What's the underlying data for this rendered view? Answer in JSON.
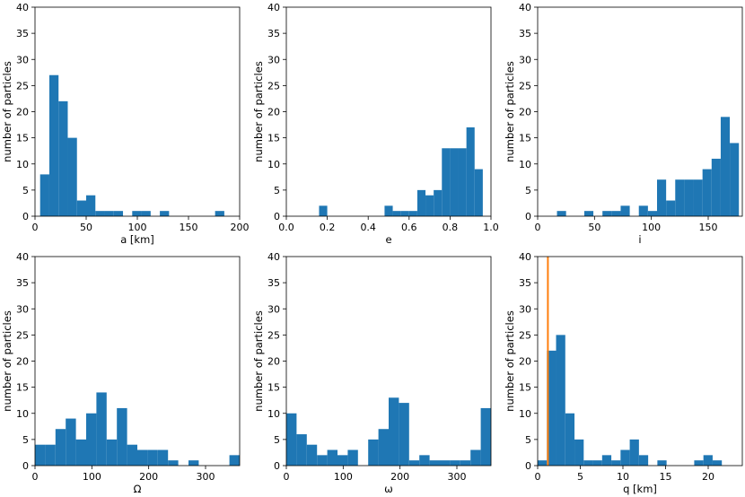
{
  "bar_color": "#1f77b4",
  "marker_color": "#ff7f0e",
  "chart_data": [
    {
      "type": "bar",
      "xlabel": "a [km]",
      "ylabel": "number of particles",
      "xlim": [
        0,
        200
      ],
      "ylim": [
        0,
        40
      ],
      "xticks": [
        0,
        50,
        100,
        150,
        200
      ],
      "yticks": [
        0,
        5,
        10,
        15,
        20,
        25,
        30,
        35,
        40
      ],
      "bins": [
        {
          "x0": 5,
          "x1": 14,
          "value": 8
        },
        {
          "x0": 14,
          "x1": 23,
          "value": 27
        },
        {
          "x0": 23,
          "x1": 32,
          "value": 22
        },
        {
          "x0": 32,
          "x1": 41,
          "value": 15
        },
        {
          "x0": 41,
          "x1": 50,
          "value": 3
        },
        {
          "x0": 50,
          "x1": 59,
          "value": 4
        },
        {
          "x0": 59,
          "x1": 68,
          "value": 1
        },
        {
          "x0": 68,
          "x1": 77,
          "value": 1
        },
        {
          "x0": 77,
          "x1": 86,
          "value": 1
        },
        {
          "x0": 95,
          "x1": 104,
          "value": 1
        },
        {
          "x0": 104,
          "x1": 113,
          "value": 1
        },
        {
          "x0": 122,
          "x1": 131,
          "value": 1
        },
        {
          "x0": 176,
          "x1": 185,
          "value": 1
        }
      ]
    },
    {
      "type": "bar",
      "xlabel": "e",
      "ylabel": "number of particles",
      "xlim": [
        0.0,
        1.0
      ],
      "ylim": [
        0,
        40
      ],
      "xticks": [
        0.0,
        0.2,
        0.4,
        0.6,
        0.8,
        1.0
      ],
      "xtick_labels": [
        "0.0",
        "0.2",
        "0.4",
        "0.6",
        "0.8",
        "1.0"
      ],
      "yticks": [
        0,
        5,
        10,
        15,
        20,
        25,
        30,
        35,
        40
      ],
      "bins": [
        {
          "x0": 0.16,
          "x1": 0.2,
          "value": 2
        },
        {
          "x0": 0.48,
          "x1": 0.52,
          "value": 2
        },
        {
          "x0": 0.52,
          "x1": 0.56,
          "value": 1
        },
        {
          "x0": 0.56,
          "x1": 0.6,
          "value": 1
        },
        {
          "x0": 0.6,
          "x1": 0.64,
          "value": 1
        },
        {
          "x0": 0.64,
          "x1": 0.68,
          "value": 5
        },
        {
          "x0": 0.68,
          "x1": 0.72,
          "value": 4
        },
        {
          "x0": 0.72,
          "x1": 0.76,
          "value": 5
        },
        {
          "x0": 0.76,
          "x1": 0.8,
          "value": 13
        },
        {
          "x0": 0.8,
          "x1": 0.84,
          "value": 13
        },
        {
          "x0": 0.84,
          "x1": 0.88,
          "value": 13
        },
        {
          "x0": 0.88,
          "x1": 0.92,
          "value": 17
        },
        {
          "x0": 0.92,
          "x1": 0.96,
          "value": 9
        }
      ]
    },
    {
      "type": "bar",
      "xlabel": "i",
      "ylabel": "number of particles",
      "xlim": [
        0,
        180
      ],
      "ylim": [
        0,
        40
      ],
      "xticks": [
        0,
        50,
        100,
        150
      ],
      "yticks": [
        0,
        5,
        10,
        15,
        20,
        25,
        30,
        35,
        40
      ],
      "bins": [
        {
          "x0": 17,
          "x1": 25,
          "value": 1
        },
        {
          "x0": 41,
          "x1": 49,
          "value": 1
        },
        {
          "x0": 57,
          "x1": 65,
          "value": 1
        },
        {
          "x0": 65,
          "x1": 73,
          "value": 1
        },
        {
          "x0": 73,
          "x1": 81,
          "value": 2
        },
        {
          "x0": 89,
          "x1": 97,
          "value": 2
        },
        {
          "x0": 97,
          "x1": 105,
          "value": 1
        },
        {
          "x0": 105,
          "x1": 113,
          "value": 7
        },
        {
          "x0": 113,
          "x1": 121,
          "value": 3
        },
        {
          "x0": 121,
          "x1": 129,
          "value": 7
        },
        {
          "x0": 129,
          "x1": 137,
          "value": 7
        },
        {
          "x0": 137,
          "x1": 145,
          "value": 7
        },
        {
          "x0": 145,
          "x1": 153,
          "value": 9
        },
        {
          "x0": 153,
          "x1": 161,
          "value": 11
        },
        {
          "x0": 161,
          "x1": 169,
          "value": 19
        },
        {
          "x0": 169,
          "x1": 177,
          "value": 14
        }
      ]
    },
    {
      "type": "bar",
      "xlabel": "Ω",
      "ylabel": "number of particles",
      "xlim": [
        0,
        360
      ],
      "ylim": [
        0,
        40
      ],
      "xticks": [
        0,
        100,
        200,
        300
      ],
      "yticks": [
        0,
        5,
        10,
        15,
        20,
        25,
        30,
        35,
        40
      ],
      "bins": [
        {
          "x0": 0,
          "x1": 18,
          "value": 4
        },
        {
          "x0": 18,
          "x1": 36,
          "value": 4
        },
        {
          "x0": 36,
          "x1": 54,
          "value": 7
        },
        {
          "x0": 54,
          "x1": 72,
          "value": 9
        },
        {
          "x0": 72,
          "x1": 90,
          "value": 5
        },
        {
          "x0": 90,
          "x1": 108,
          "value": 10
        },
        {
          "x0": 108,
          "x1": 126,
          "value": 14
        },
        {
          "x0": 126,
          "x1": 144,
          "value": 5
        },
        {
          "x0": 144,
          "x1": 162,
          "value": 11
        },
        {
          "x0": 162,
          "x1": 180,
          "value": 4
        },
        {
          "x0": 180,
          "x1": 198,
          "value": 3
        },
        {
          "x0": 198,
          "x1": 216,
          "value": 3
        },
        {
          "x0": 216,
          "x1": 234,
          "value": 3
        },
        {
          "x0": 234,
          "x1": 252,
          "value": 1
        },
        {
          "x0": 270,
          "x1": 288,
          "value": 1
        },
        {
          "x0": 342,
          "x1": 360,
          "value": 2
        }
      ]
    },
    {
      "type": "bar",
      "xlabel": "ω",
      "ylabel": "number of particles",
      "xlim": [
        0,
        360
      ],
      "ylim": [
        0,
        40
      ],
      "xticks": [
        0,
        100,
        200,
        300
      ],
      "yticks": [
        0,
        5,
        10,
        15,
        20,
        25,
        30,
        35,
        40
      ],
      "bins": [
        {
          "x0": 0,
          "x1": 18,
          "value": 10
        },
        {
          "x0": 18,
          "x1": 36,
          "value": 6
        },
        {
          "x0": 36,
          "x1": 54,
          "value": 4
        },
        {
          "x0": 54,
          "x1": 72,
          "value": 2
        },
        {
          "x0": 72,
          "x1": 90,
          "value": 3
        },
        {
          "x0": 90,
          "x1": 108,
          "value": 2
        },
        {
          "x0": 108,
          "x1": 126,
          "value": 3
        },
        {
          "x0": 144,
          "x1": 162,
          "value": 5
        },
        {
          "x0": 162,
          "x1": 180,
          "value": 7
        },
        {
          "x0": 180,
          "x1": 198,
          "value": 13
        },
        {
          "x0": 198,
          "x1": 216,
          "value": 12
        },
        {
          "x0": 216,
          "x1": 234,
          "value": 1
        },
        {
          "x0": 234,
          "x1": 252,
          "value": 2
        },
        {
          "x0": 252,
          "x1": 270,
          "value": 1
        },
        {
          "x0": 270,
          "x1": 288,
          "value": 1
        },
        {
          "x0": 288,
          "x1": 306,
          "value": 1
        },
        {
          "x0": 306,
          "x1": 324,
          "value": 1
        },
        {
          "x0": 324,
          "x1": 342,
          "value": 3
        },
        {
          "x0": 342,
          "x1": 360,
          "value": 11
        }
      ]
    },
    {
      "type": "bar",
      "xlabel": "q [km]",
      "ylabel": "number of particles",
      "xlim": [
        0,
        24
      ],
      "ylim": [
        0,
        40
      ],
      "xticks": [
        0,
        5,
        10,
        15,
        20
      ],
      "yticks": [
        0,
        5,
        10,
        15,
        20,
        25,
        30,
        35,
        40
      ],
      "marker_line_x": 1.2,
      "bins": [
        {
          "x0": 0.0,
          "x1": 1.08,
          "value": 1
        },
        {
          "x0": 1.08,
          "x1": 2.16,
          "value": 22
        },
        {
          "x0": 2.16,
          "x1": 3.24,
          "value": 25
        },
        {
          "x0": 3.24,
          "x1": 4.32,
          "value": 10
        },
        {
          "x0": 4.32,
          "x1": 5.4,
          "value": 5
        },
        {
          "x0": 5.4,
          "x1": 6.48,
          "value": 1
        },
        {
          "x0": 6.48,
          "x1": 7.56,
          "value": 1
        },
        {
          "x0": 7.56,
          "x1": 8.64,
          "value": 2
        },
        {
          "x0": 8.64,
          "x1": 9.72,
          "value": 1
        },
        {
          "x0": 9.72,
          "x1": 10.8,
          "value": 3
        },
        {
          "x0": 10.8,
          "x1": 11.88,
          "value": 5
        },
        {
          "x0": 11.88,
          "x1": 12.96,
          "value": 2
        },
        {
          "x0": 14.04,
          "x1": 15.12,
          "value": 1
        },
        {
          "x0": 18.36,
          "x1": 19.44,
          "value": 1
        },
        {
          "x0": 19.44,
          "x1": 20.52,
          "value": 2
        },
        {
          "x0": 20.52,
          "x1": 21.6,
          "value": 1
        }
      ]
    }
  ]
}
